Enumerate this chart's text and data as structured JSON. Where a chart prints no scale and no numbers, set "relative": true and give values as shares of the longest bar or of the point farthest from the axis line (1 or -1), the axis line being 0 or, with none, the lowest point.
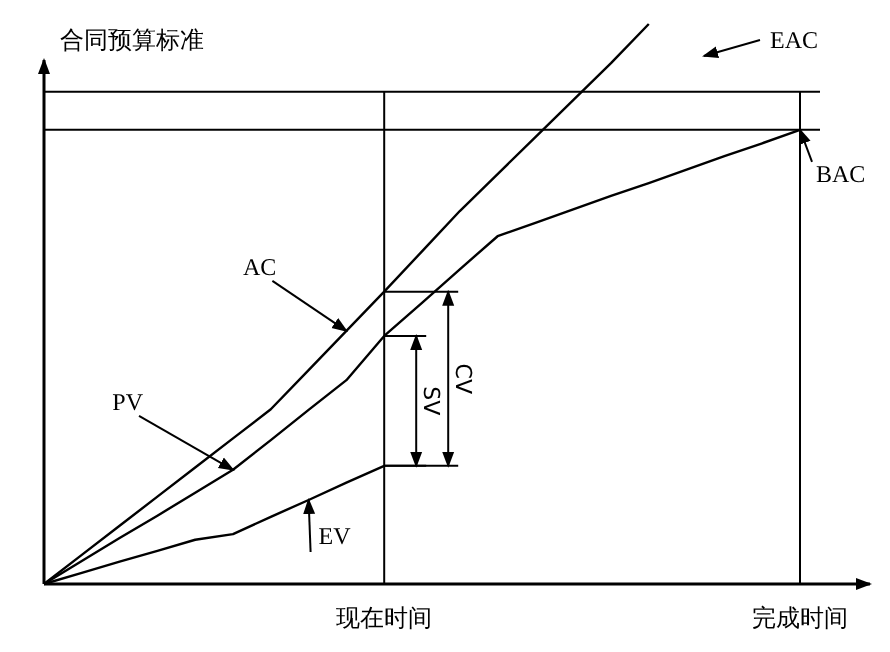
{
  "chart_data": {
    "type": "line",
    "relative": true,
    "ylabel": "合同预算标准",
    "categories": [
      null,
      null,
      null,
      null,
      null,
      null,
      null,
      null,
      null,
      "现在时间",
      null,
      null,
      null,
      null,
      null,
      null,
      null,
      null,
      null,
      null,
      "完成时间"
    ],
    "series": [
      {
        "color": "#000000",
        "values": [
          0,
          0.052,
          0.104,
          0.156,
          0.208,
          0.26,
          0.312,
          0.382,
          0.452,
          0.522,
          0.594,
          0.666,
          0.732,
          0.798,
          0.864,
          0.93,
          1,
          null,
          null,
          null,
          null
        ]
      },
      {
        "color": "#000000",
        "values": [
          0,
          0.041,
          0.082,
          0.122,
          0.163,
          0.204,
          0.257,
          0.311,
          0.364,
          0.443,
          0.502,
          0.562,
          0.621,
          0.645,
          0.669,
          0.693,
          0.716,
          0.74,
          0.764,
          0.787,
          0.811
        ]
      },
      {
        "color": "#000000",
        "values": [
          0,
          0.02,
          0.04,
          0.059,
          0.079,
          0.089,
          0.12,
          0.15,
          0.181,
          0.211,
          null,
          null,
          null,
          null,
          null,
          null,
          null,
          null,
          null,
          null,
          null
        ]
      }
    ],
    "ref_lines": [
      {
        "axis": "y",
        "value": 0.879,
        "color": "#000000"
      },
      {
        "axis": "y",
        "value": 0.811,
        "color": "#000000"
      }
    ],
    "annotations": [
      "AC",
      "PV",
      "EV",
      "EAC",
      "BAC",
      "SV",
      "CV"
    ],
    "grid": "x",
    "marker": "none",
    "line_style": "solid"
  }
}
